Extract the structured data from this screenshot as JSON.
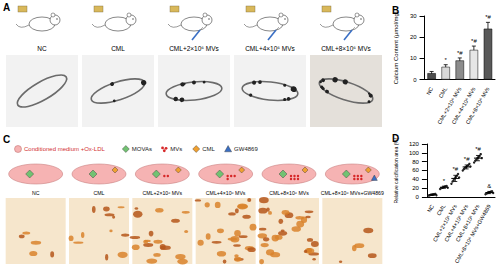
{
  "panels": {
    "A": {
      "label": "A",
      "columns": [
        "NC",
        "CML",
        "CML+2×10⁶ MVs",
        "CML+4×10⁶ MVs",
        "CML+8×10⁶ MVs"
      ]
    },
    "C": {
      "label": "C",
      "legend": [
        {
          "label": "Conditioned medium +Ox-LDL",
          "marker": "circle",
          "color": "#f6b3b3"
        },
        {
          "label": "MOVAs",
          "marker": "diamond",
          "color": "#72c272"
        },
        {
          "label": "MVs",
          "marker": "dots",
          "color": "#d62728"
        },
        {
          "label": "CML",
          "marker": "diamond",
          "color": "#f0a030"
        },
        {
          "label": "GW4869",
          "marker": "triangle",
          "color": "#3a6fc4"
        }
      ],
      "columns": [
        "NC",
        "CML",
        "CML+2×10⁶ MVs",
        "CML+4×10⁶ MVs",
        "CML+8×10⁶ MVs",
        "CML+8×10⁶ MVs+GW4869"
      ]
    }
  },
  "chart_data": [
    {
      "panel": "B",
      "type": "bar",
      "ylabel": "Calcium Content (μmol/mg)",
      "categories": [
        "NC",
        "CML",
        "CML+2×10⁶ MVs",
        "CML+4×10⁶ MVs",
        "CML+8×10⁶ MVs"
      ],
      "values": [
        3,
        6,
        9,
        14,
        24
      ],
      "errors": [
        0.8,
        1,
        1.2,
        1.8,
        3
      ],
      "significance": [
        null,
        "*",
        "*#",
        "*#",
        "*#"
      ],
      "colors": [
        "#4d4d4d",
        "#d9d9d9",
        "#8c8c8c",
        "#e6e6e6",
        "#595959"
      ],
      "ylim": [
        0,
        30
      ],
      "yticks": [
        0,
        10,
        20,
        30
      ],
      "grid": false
    },
    {
      "panel": "D",
      "type": "scatter",
      "ylabel": "Relative calcification area (%)",
      "categories": [
        "NC",
        "CML",
        "CML+2×10⁶ MVs",
        "CML+4×10⁶ MVs",
        "CML+8×10⁶ MVs",
        "CML+8×10⁶ MVs+GW4869"
      ],
      "values": [
        5,
        22,
        42,
        68,
        88,
        10
      ],
      "errors": [
        1.5,
        2.5,
        7,
        4.5,
        6,
        2.5
      ],
      "points": [
        [
          3,
          4,
          5,
          5,
          6,
          6,
          7,
          4
        ],
        [
          18,
          20,
          21,
          22,
          23,
          24,
          25,
          21
        ],
        [
          30,
          35,
          38,
          42,
          45,
          48,
          52,
          44
        ],
        [
          60,
          63,
          66,
          68,
          70,
          72,
          75,
          69
        ],
        [
          78,
          82,
          85,
          88,
          90,
          93,
          97,
          88
        ],
        [
          6,
          8,
          9,
          10,
          11,
          12,
          13,
          9
        ]
      ],
      "significance": [
        null,
        "*",
        "*#",
        "*#",
        "*#",
        "&"
      ],
      "color": "#222222",
      "ylim": [
        0,
        120
      ],
      "yticks": [
        0,
        20,
        40,
        60,
        80,
        100,
        120
      ],
      "grid": false
    }
  ]
}
